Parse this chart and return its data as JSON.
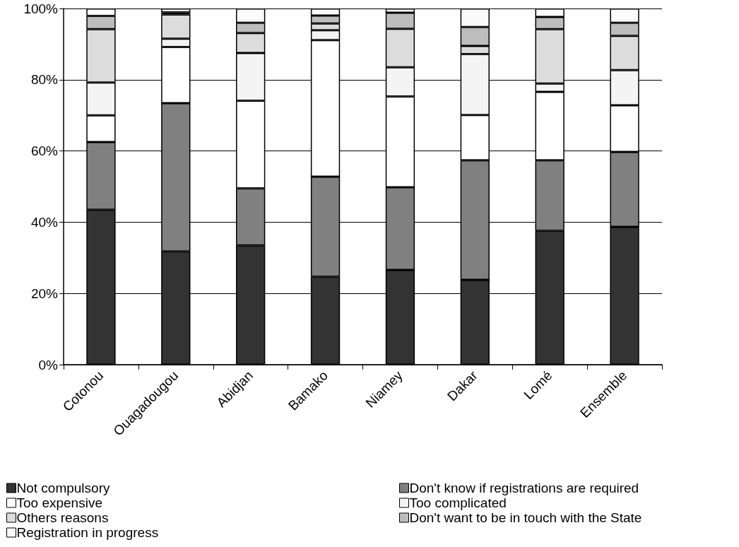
{
  "chart_data": {
    "type": "bar",
    "stacked": true,
    "categories": [
      "Cotonou",
      "Ouagadougou",
      "Abidjan",
      "Bamako",
      "Niamey",
      "Dakar",
      "Lomé",
      "Ensemble"
    ],
    "series": [
      {
        "name": "Not compulsory",
        "color": "#333333",
        "values": [
          43.5,
          31.8,
          33.5,
          24.7,
          26.6,
          23.8,
          37.6,
          38.7
        ]
      },
      {
        "name": "Don't know if registrations are required",
        "color": "#808080",
        "values": [
          19.0,
          41.6,
          16.0,
          28.1,
          23.2,
          33.6,
          19.8,
          21.0
        ]
      },
      {
        "name": "Too expensive",
        "color": "#ffffff",
        "values": [
          7.5,
          15.8,
          24.6,
          38.3,
          25.5,
          12.7,
          19.2,
          13.1
        ]
      },
      {
        "name": "Too complicated",
        "color": "#f4f4f4",
        "values": [
          9.2,
          2.3,
          13.4,
          2.8,
          8.2,
          17.1,
          2.3,
          9.9
        ]
      },
      {
        "name": "Others reasons",
        "color": "#dcdcdc",
        "values": [
          15.0,
          6.8,
          5.6,
          1.9,
          10.8,
          2.3,
          15.3,
          9.6
        ]
      },
      {
        "name": "Don't want to be in touch with the State",
        "color": "#bdbdbd",
        "values": [
          3.7,
          0.6,
          2.9,
          2.2,
          4.5,
          5.3,
          3.4,
          3.7
        ]
      },
      {
        "name": "Registration in progress",
        "color": "#fafafa",
        "values": [
          2.1,
          1.1,
          4.0,
          2.0,
          1.2,
          5.2,
          2.4,
          4.0
        ]
      }
    ],
    "ylim": [
      0,
      100
    ],
    "yticks": [
      {
        "value": 0,
        "label": "0%"
      },
      {
        "value": 20,
        "label": "20%"
      },
      {
        "value": 40,
        "label": "40%"
      },
      {
        "value": 60,
        "label": "60%"
      },
      {
        "value": 80,
        "label": "80%"
      },
      {
        "value": 100,
        "label": "100%"
      }
    ],
    "grid": "y",
    "legend": "bottom"
  }
}
